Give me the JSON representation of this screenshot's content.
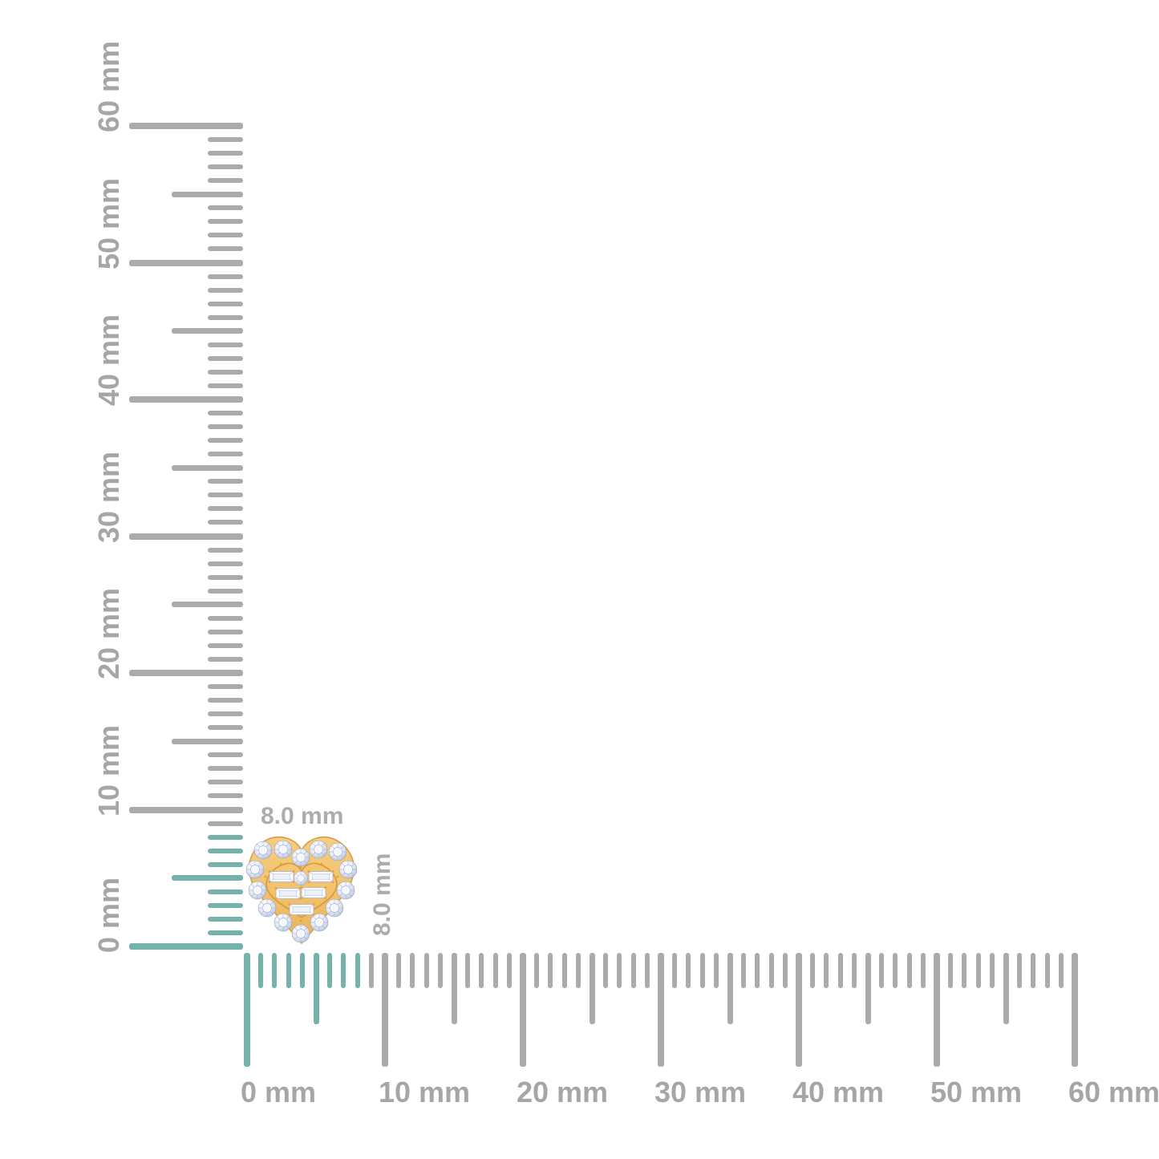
{
  "page": {
    "background": "#FFFFFF"
  },
  "item": {
    "name": "gold-diamond-heart-stud",
    "width_label": "8.0 mm",
    "height_label": "8.0 mm",
    "width_mm": 8.0,
    "height_mm": 8.0
  },
  "rulers": {
    "unit": "mm",
    "min_mm": 0,
    "max_mm": 60,
    "minor_step_mm": 1,
    "half_step_mm": 5,
    "major_step_mm": 10,
    "highlight_from_mm": 0,
    "highlight_to_mm": 8,
    "vertical_labels": [
      "0 mm",
      "10 mm",
      "20 mm",
      "30 mm",
      "40 mm",
      "50 mm",
      "60 mm"
    ],
    "horizontal_labels": [
      "0 mm",
      "10 mm",
      "20 mm",
      "30 mm",
      "40 mm",
      "50 mm",
      "60 mm"
    ]
  },
  "colors": {
    "tick_gray": "#ABABAB",
    "highlight_teal": "#76B2AC",
    "label_gray": "#A6A6A6",
    "dimension_label_gray": "#ACACAC",
    "gold": "#F2C16A",
    "gold_dark": "#D89E45",
    "diamond_white": "#EFF2F9",
    "diamond_shadow": "#A9B5D3"
  }
}
